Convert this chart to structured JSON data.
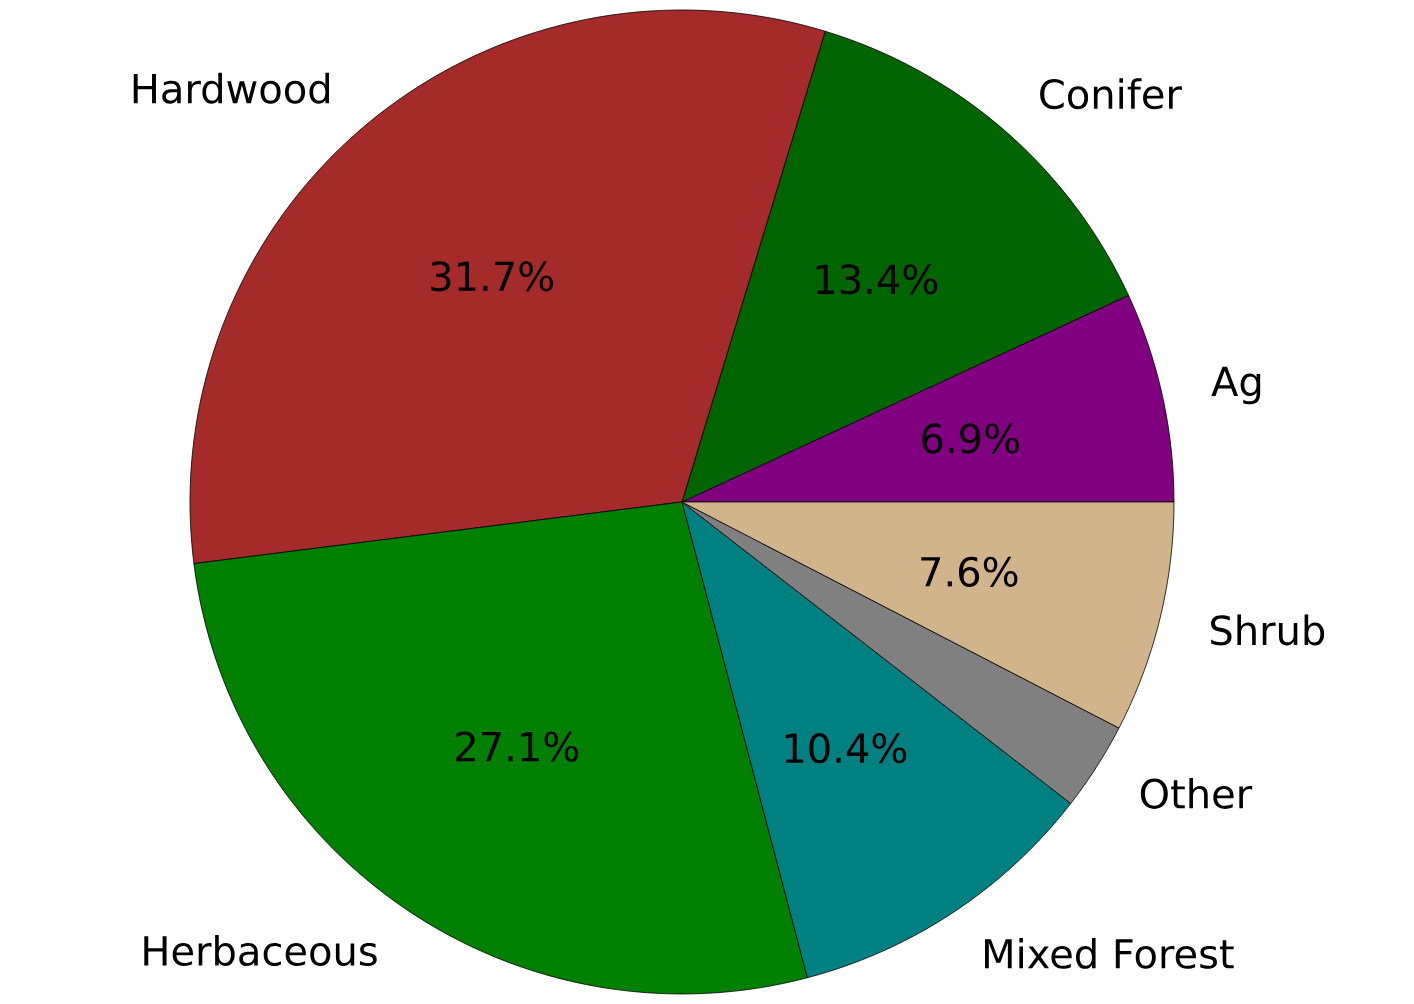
{
  "chart_data": {
    "type": "pie",
    "categories": [
      "Ag",
      "Conifer",
      "Hardwood",
      "Herbaceous",
      "Mixed Forest",
      "Other",
      "Shrub"
    ],
    "values": [
      6.9,
      13.4,
      31.7,
      27.1,
      10.4,
      2.9,
      7.6
    ],
    "colors": [
      "#800080",
      "#006400",
      "#a52a2a",
      "#008000",
      "#008080",
      "#808080",
      "#d2b48c"
    ],
    "value_labels": [
      "6.9%",
      "13.4%",
      "31.7%",
      "27.1%",
      "10.4%",
      null,
      "7.6%"
    ]
  }
}
